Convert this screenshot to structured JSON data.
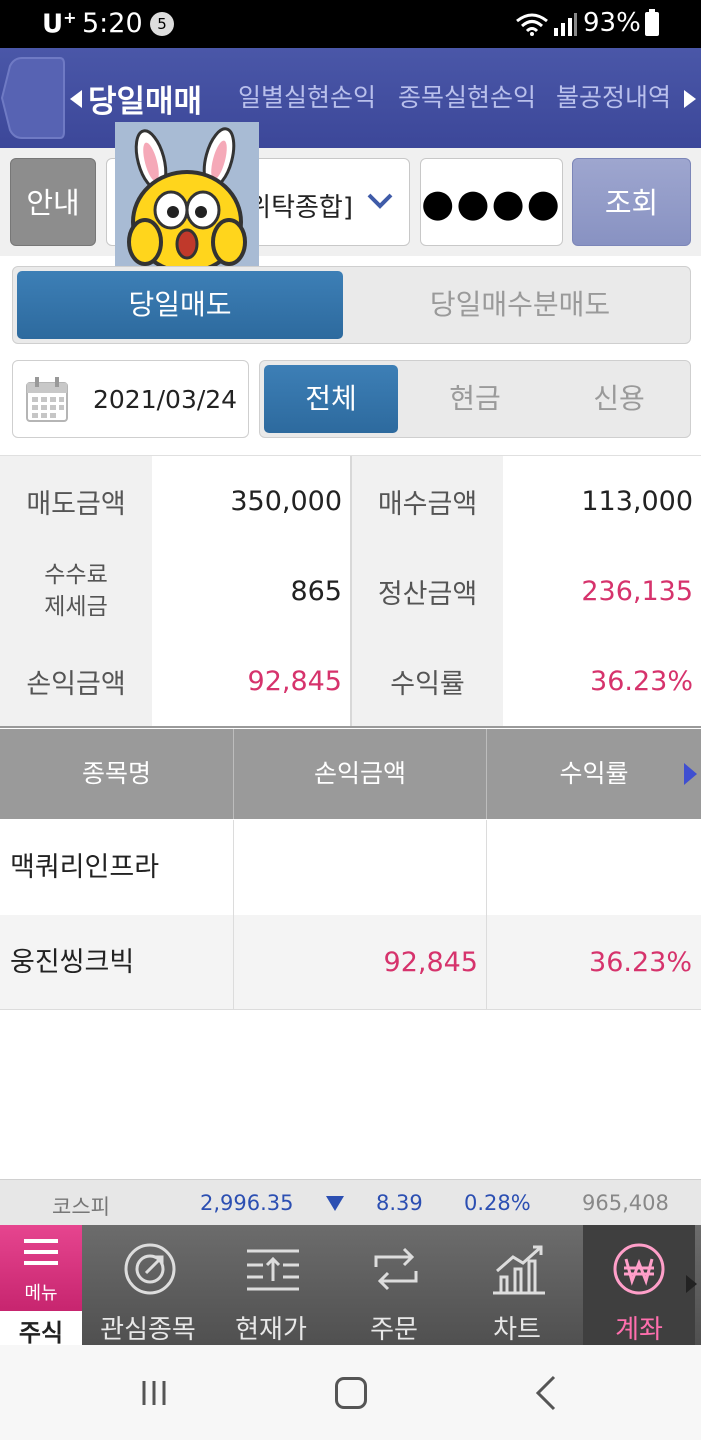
{
  "status_bar": {
    "carrier": "U",
    "carrier_sup": "+",
    "time": "5:20",
    "notification_count": "5",
    "battery": "93%"
  },
  "top_nav": {
    "tabs": [
      "당일매매",
      "일별실현손익",
      "종목실현손익",
      "불공정내역"
    ],
    "active": "당일매매"
  },
  "account": {
    "guide_label": "안내",
    "account_text": "위탁종합]",
    "password_mask": "●●●●",
    "search_label": "조회"
  },
  "sell_tabs": {
    "active": "당일매도",
    "inactive": "당일매수분매도"
  },
  "date": "2021/03/24",
  "filter_tabs": [
    "전체",
    "현금",
    "신용"
  ],
  "summary": {
    "sell_amount_label": "매도금액",
    "sell_amount": "350,000",
    "buy_amount_label": "매수금액",
    "buy_amount": "113,000",
    "fee_label_1": "수수료",
    "fee_label_2": "제세금",
    "fee": "865",
    "settle_label": "정산금액",
    "settle": "236,135",
    "pnl_label": "손익금액",
    "pnl": "92,845",
    "rate_label": "수익률",
    "rate": "36.23%"
  },
  "table": {
    "headers": [
      "종목명",
      "손익금액",
      "수익률"
    ],
    "rows": [
      {
        "name": "맥쿼리인프라",
        "pnl": "",
        "rate": ""
      },
      {
        "name": "웅진씽크빅",
        "pnl": "92,845",
        "rate": "36.23%"
      }
    ]
  },
  "ticker": {
    "name": "코스피",
    "value": "2,996.35",
    "change": "8.39",
    "pct": "0.28%",
    "volume": "965,408"
  },
  "app_nav": {
    "menu_label": "메뉴",
    "stock_label": "주식",
    "items": [
      "관심종목",
      "현재가",
      "주문",
      "차트",
      "계좌"
    ],
    "active": "계좌"
  },
  "colors": {
    "accent_blue": "#2d6a9e",
    "nav_blue": "#4a57a8",
    "profit_pink": "#d6336c",
    "index_blue": "#2c4fb2",
    "menu_pink": "#e6458f"
  }
}
